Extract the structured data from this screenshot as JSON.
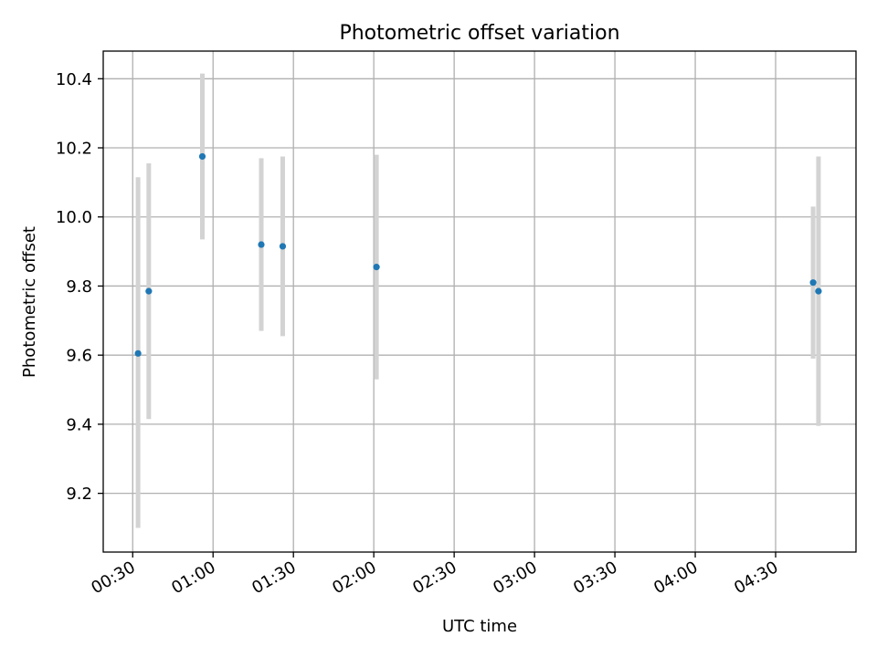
{
  "chart_data": {
    "type": "scatter",
    "title": "Photometric offset variation",
    "xlabel": "UTC time",
    "ylabel": "Photometric offset",
    "x_axis_type": "time",
    "xlim": [
      "00:19",
      "05:00"
    ],
    "ylim": [
      9.03,
      10.48
    ],
    "x_ticks": [
      "00:30",
      "01:00",
      "01:30",
      "02:00",
      "02:30",
      "03:00",
      "03:30",
      "04:00",
      "04:30"
    ],
    "y_ticks": [
      9.2,
      9.4,
      9.6,
      9.8,
      10.0,
      10.2,
      10.4
    ],
    "grid": true,
    "errorbar_color": "#d3d3d3",
    "marker_color": "#1f77b4",
    "points": [
      {
        "x": "00:32",
        "y": 9.605,
        "ylow": 9.1,
        "yhigh": 10.115
      },
      {
        "x": "00:36",
        "y": 9.785,
        "ylow": 9.415,
        "yhigh": 10.155
      },
      {
        "x": "00:56",
        "y": 10.175,
        "ylow": 9.935,
        "yhigh": 10.415
      },
      {
        "x": "01:18",
        "y": 9.92,
        "ylow": 9.67,
        "yhigh": 10.17
      },
      {
        "x": "01:26",
        "y": 9.915,
        "ylow": 9.655,
        "yhigh": 10.175
      },
      {
        "x": "02:01",
        "y": 9.855,
        "ylow": 9.53,
        "yhigh": 10.18
      },
      {
        "x": "04:44",
        "y": 9.81,
        "ylow": 9.59,
        "yhigh": 10.03
      },
      {
        "x": "04:46",
        "y": 9.785,
        "ylow": 9.395,
        "yhigh": 10.175
      }
    ]
  }
}
